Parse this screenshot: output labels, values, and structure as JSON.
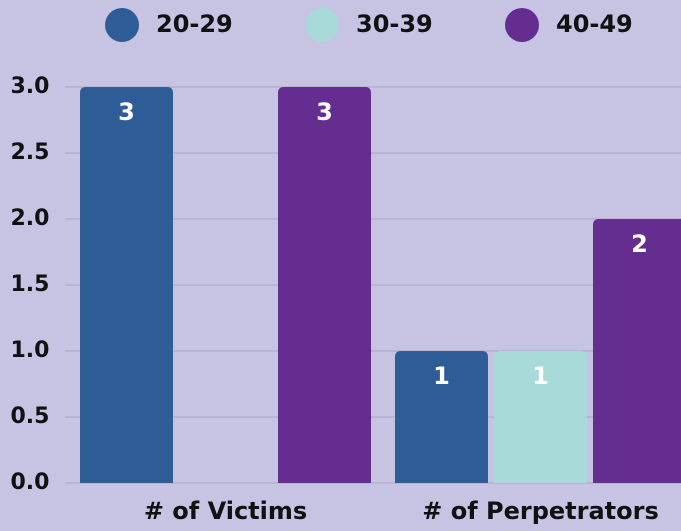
{
  "chart_data": {
    "type": "bar",
    "categories": [
      "# of Victims",
      "# of Perpetrators"
    ],
    "series": [
      {
        "name": "20-29",
        "color": "#2e5c97",
        "values": [
          3,
          1
        ]
      },
      {
        "name": "30-39",
        "color": "#a8dad9",
        "values": [
          0,
          1
        ]
      },
      {
        "name": "40-49",
        "color": "#652d90",
        "values": [
          3,
          2
        ]
      }
    ],
    "ylim": [
      0,
      3
    ],
    "yticks": [
      {
        "value": 0,
        "label": "0.0"
      },
      0.5,
      {
        "value": 1,
        "label": "1.0"
      },
      1.5,
      {
        "value": 2,
        "label": "2.0"
      },
      2.5,
      {
        "value": 3,
        "label": "3.0"
      }
    ],
    "grid": true,
    "legend": "top"
  }
}
